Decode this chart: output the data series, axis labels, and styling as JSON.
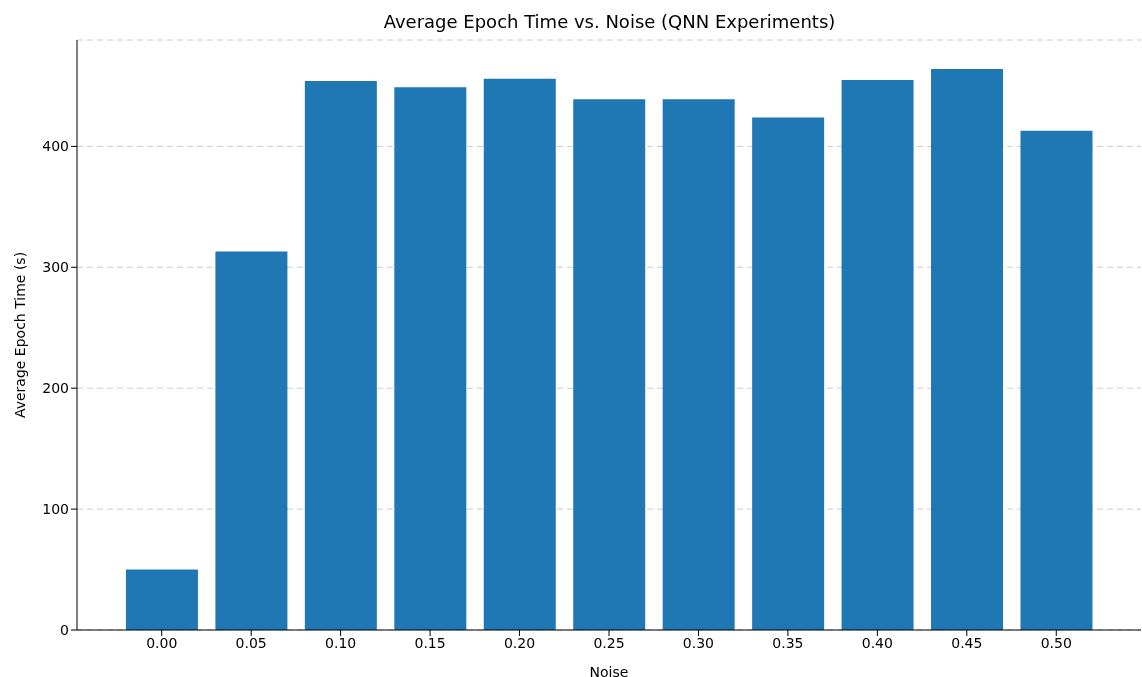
{
  "chart_data": {
    "type": "bar",
    "title": "Average Epoch Time vs. Noise (QNN Experiments)",
    "xlabel": "Noise",
    "ylabel": "Average Epoch Time (s)",
    "categories": [
      "0.00",
      "0.05",
      "0.10",
      "0.15",
      "0.20",
      "0.25",
      "0.30",
      "0.35",
      "0.40",
      "0.45",
      "0.50"
    ],
    "values": [
      50,
      313,
      454,
      449,
      456,
      439,
      439,
      424,
      455,
      464,
      413
    ],
    "color": "#1f77b4",
    "ylim": [
      0,
      488
    ],
    "yticks": [
      0,
      100,
      200,
      300,
      400
    ],
    "grid": "y"
  }
}
